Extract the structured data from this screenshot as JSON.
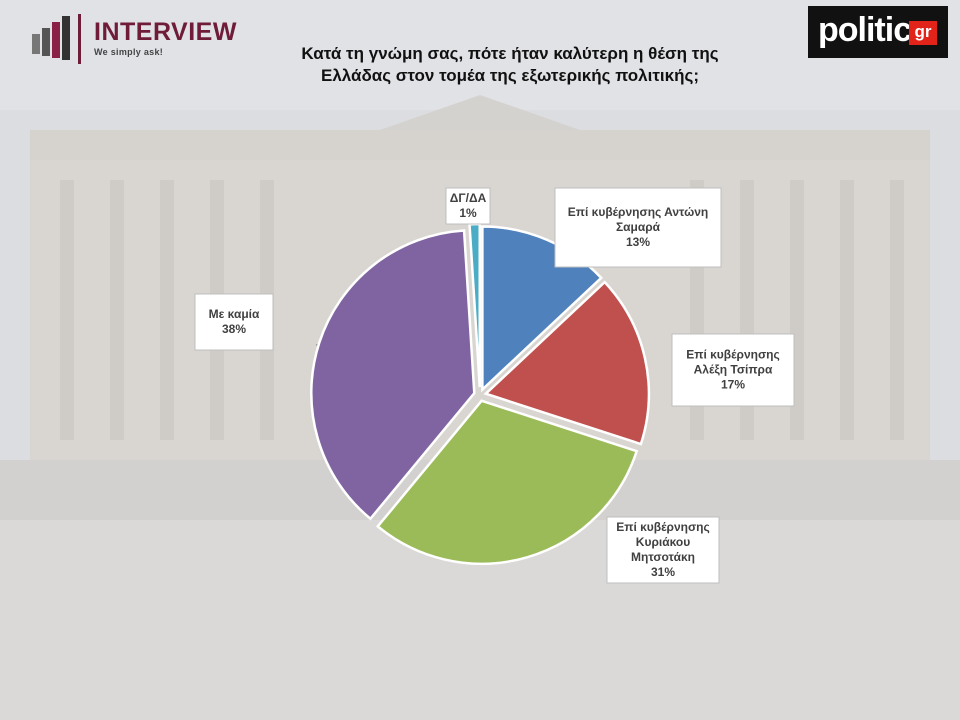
{
  "header": {
    "logo_title": "INTERVIEW",
    "logo_tagline": "We simply ask!",
    "brand_word": "politic",
    "brand_suffix": "gr",
    "title_line1": "Κατά τη γνώμη σας, πότε ήταν καλύτερη η θέση της",
    "title_line2": "Ελλάδας στον τομέα της εξωτερικής πολιτικής;"
  },
  "colors": {
    "logo_accent": "#6e1c38",
    "brand_bg": "#111111",
    "brand_red": "#e2231a"
  },
  "chart_data": {
    "type": "pie",
    "title": "Κατά τη γνώμη σας, πότε ήταν καλύτερη η θέση της Ελλάδας στον τομέα της εξωτερικής πολιτικής;",
    "unit": "%",
    "slices": [
      {
        "label_lines": [
          "Επί κυβέρνησης Αντώνη",
          "Σαμαρά"
        ],
        "value": 13,
        "value_label": "13%",
        "color": "#4f81bd"
      },
      {
        "label_lines": [
          "Επί κυβέρνησης",
          "Αλέξη Τσίπρα"
        ],
        "value": 17,
        "value_label": "17%",
        "color": "#c0504d"
      },
      {
        "label_lines": [
          "Επί κυβέρνησης",
          "Κυριάκου",
          "Μητσοτάκη"
        ],
        "value": 31,
        "value_label": "31%",
        "color": "#9bbb59"
      },
      {
        "label_lines": [
          "Με καμία"
        ],
        "value": 38,
        "value_label": "38%",
        "color": "#8064a2"
      },
      {
        "label_lines": [
          "ΔΓ/ΔΑ"
        ],
        "value": 1,
        "value_label": "1%",
        "color": "#4bacc6"
      }
    ]
  }
}
